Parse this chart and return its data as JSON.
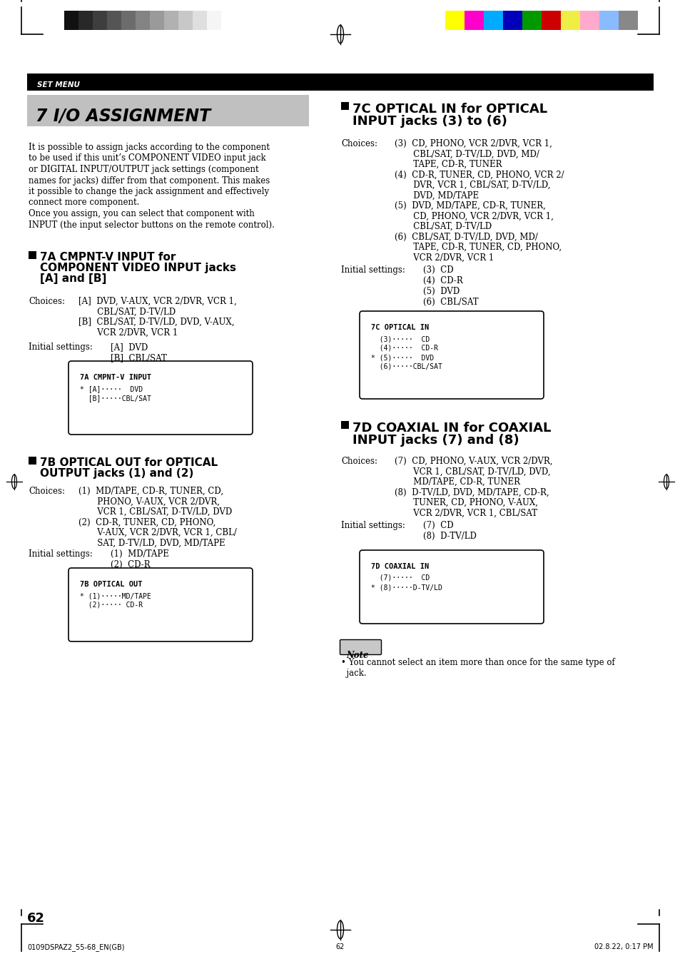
{
  "page_bg": "#ffffff",
  "grayscale_colors": [
    "#111111",
    "#282828",
    "#3e3e3e",
    "#555555",
    "#6c6c6c",
    "#838383",
    "#9a9a9a",
    "#b1b1b1",
    "#c8c8c8",
    "#dfdfdf",
    "#f5f5f5"
  ],
  "color_bars": [
    "#ffff00",
    "#ff00cc",
    "#00aaff",
    "#0000bb",
    "#009900",
    "#cc0000",
    "#eeee44",
    "#ffaacc",
    "#88bbff",
    "#888888"
  ],
  "set_menu_text": "SET MENU",
  "title_text": "7 I/O ASSIGNMENT",
  "page_number": "62",
  "footer_left": "0109DSPAZ2_55-68_EN(GB)",
  "footer_center": "62",
  "footer_right": "02.8.22, 0:17 PM",
  "intro_text": [
    "It is possible to assign jacks according to the component",
    "to be used if this unit’s COMPONENT VIDEO input jack",
    "or DIGITAL INPUT/OUTPUT jack settings (component",
    "names for jacks) differ from that component. This makes",
    "it possible to change the jack assignment and effectively",
    "connect more component.",
    "Once you assign, you can select that component with",
    "INPUT (the input selector buttons on the remote control)."
  ],
  "s7a_t1": "7A CMPNT-V INPUT for",
  "s7a_t2": "COMPONENT VIDEO INPUT jacks",
  "s7a_t3": "[A] and [B]",
  "s7a_choices_lbl": "Choices:",
  "s7a_choices": [
    "[A]  DVD, V-AUX, VCR 2/DVR, VCR 1,",
    "       CBL/SAT, D-TV/LD",
    "[B]  CBL/SAT, D-TV/LD, DVD, V-AUX,",
    "       VCR 2/DVR, VCR 1"
  ],
  "s7a_init_lbl": "Initial settings:",
  "s7a_init": [
    "[A]  DVD",
    "[B]  CBL/SAT"
  ],
  "s7a_disp_title": "7A CMPNT-V INPUT",
  "s7a_disp": [
    "* [A]·····  DVD",
    "  [B]·····CBL/SAT"
  ],
  "s7b_t1": "7B OPTICAL OUT for OPTICAL",
  "s7b_t2": "OUTPUT jacks (1) and (2)",
  "s7b_choices_lbl": "Choices:",
  "s7b_choices": [
    "(1)  MD/TAPE, CD-R, TUNER, CD,",
    "       PHONO, V-AUX, VCR 2/DVR,",
    "       VCR 1, CBL/SAT, D-TV/LD, DVD",
    "(2)  CD-R, TUNER, CD, PHONO,",
    "       V-AUX, VCR 2/DVR, VCR 1, CBL/",
    "       SAT, D-TV/LD, DVD, MD/TAPE"
  ],
  "s7b_init_lbl": "Initial settings:",
  "s7b_init": [
    "(1)  MD/TAPE",
    "(2)  CD-R"
  ],
  "s7b_disp_title": "7B OPTICAL OUT",
  "s7b_disp": [
    "* (1)·····MD/TAPE",
    "  (2)····· CD-R"
  ],
  "s7c_t1": "7C OPTICAL IN for OPTICAL",
  "s7c_t2": "INPUT jacks (3) to (6)",
  "s7c_choices_lbl": "Choices:",
  "s7c_choices": [
    "(3)  CD, PHONO, VCR 2/DVR, VCR 1,",
    "       CBL/SAT, D-TV/LD, DVD, MD/",
    "       TAPE, CD-R, TUNER",
    "(4)  CD-R, TUNER, CD, PHONO, VCR 2/",
    "       DVR, VCR 1, CBL/SAT, D-TV/LD,",
    "       DVD, MD/TAPE",
    "(5)  DVD, MD/TAPE, CD-R, TUNER,",
    "       CD, PHONO, VCR 2/DVR, VCR 1,",
    "       CBL/SAT, D-TV/LD",
    "(6)  CBL/SAT, D-TV/LD, DVD, MD/",
    "       TAPE, CD-R, TUNER, CD, PHONO,",
    "       VCR 2/DVR, VCR 1"
  ],
  "s7c_init_lbl": "Initial settings:",
  "s7c_init": [
    "(3)  CD",
    "(4)  CD-R",
    "(5)  DVD",
    "(6)  CBL/SAT"
  ],
  "s7c_disp_title": "7C OPTICAL IN",
  "s7c_disp": [
    "  (3)·····  CD",
    "  (4)·····  CD-R",
    "* (5)·····  DVD",
    "  (6)·····CBL/SAT"
  ],
  "s7d_t1": "7D COAXIAL IN for COAXIAL",
  "s7d_t2": "INPUT jacks (7) and (8)",
  "s7d_choices_lbl": "Choices:",
  "s7d_choices": [
    "(7)  CD, PHONO, V-AUX, VCR 2/DVR,",
    "       VCR 1, CBL/SAT, D-TV/LD, DVD,",
    "       MD/TAPE, CD-R, TUNER",
    "(8)  D-TV/LD, DVD, MD/TAPE, CD-R,",
    "       TUNER, CD, PHONO, V-AUX,",
    "       VCR 2/DVR, VCR 1, CBL/SAT"
  ],
  "s7d_init_lbl": "Initial settings:",
  "s7d_init": [
    "(7)  CD",
    "(8)  D-TV/LD"
  ],
  "s7d_disp_title": "7D COAXIAL IN",
  "s7d_disp": [
    "  (7)·····  CD",
    "* (8)·····D-TV/LD"
  ],
  "note_lbl": "Note",
  "note_text": "• You cannot select an item more than once for the same type of",
  "note_text2": "  jack."
}
